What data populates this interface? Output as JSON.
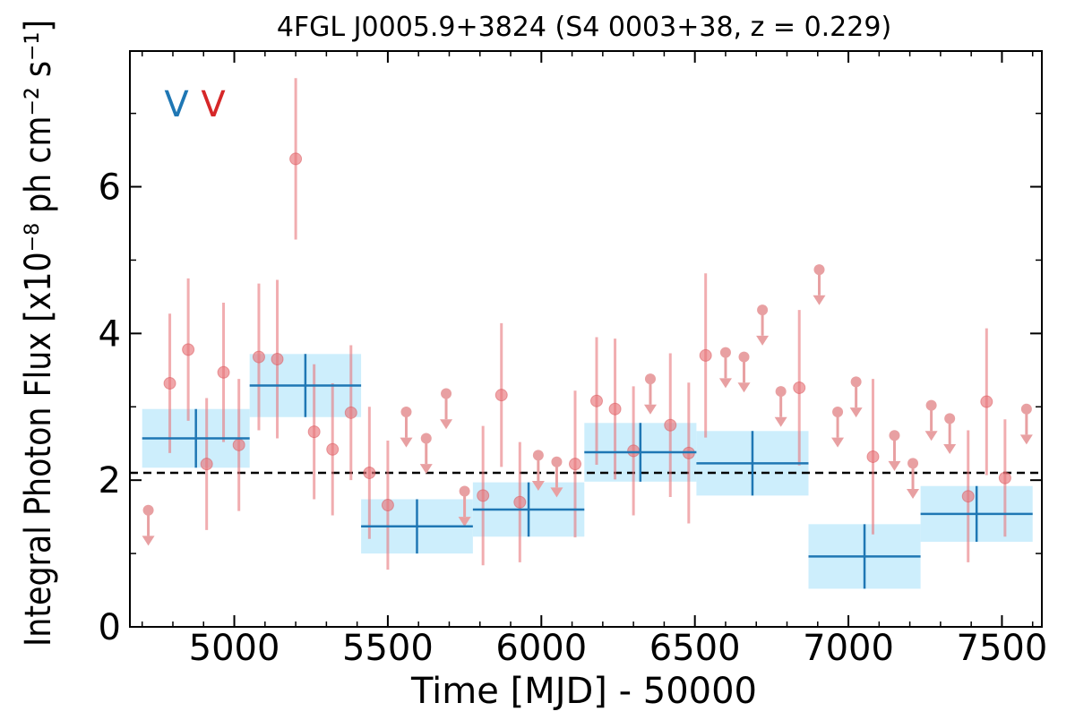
{
  "chart_data": {
    "type": "scatter",
    "title": "4FGL J0005.9+3824 (S4 0003+38, z = 0.229)",
    "xlabel": "Time [MJD] - 50000",
    "ylabel": "Integral Photon Flux [x10⁻⁸ ph cm⁻² s⁻¹]",
    "xlim": [
      4660,
      7630
    ],
    "ylim": [
      0,
      7.85
    ],
    "xticks": [
      5000,
      5500,
      6000,
      6500,
      7000,
      7500
    ],
    "xtick_labels": [
      "5000",
      "5500",
      "6000",
      "6500",
      "7000",
      "7500"
    ],
    "yticks": [
      0,
      2,
      4,
      6
    ],
    "ytick_labels": [
      "0",
      "2",
      "4",
      "6"
    ],
    "grid": false,
    "reference_line": {
      "y": 2.1,
      "style": "dashed",
      "color": "#000000"
    },
    "markers": [
      {
        "text": "V",
        "color": "#1f77b4"
      },
      {
        "text": "V",
        "color": "#d62728"
      }
    ],
    "colors": {
      "short_bin": "#e8777b",
      "long_bin": "#1f77b4",
      "long_bin_band": "#cdeefc",
      "upper_limit": "#e8a0a2"
    },
    "series": [
      {
        "style": "points",
        "detections": [
          {
            "x": 4790,
            "y": 3.32,
            "err": 0.95
          },
          {
            "x": 4850,
            "y": 3.78,
            "err": 0.97
          },
          {
            "x": 4910,
            "y": 2.22,
            "err": 0.9
          },
          {
            "x": 4965,
            "y": 3.47,
            "err": 0.95
          },
          {
            "x": 5015,
            "y": 2.48,
            "err": 0.9
          },
          {
            "x": 5080,
            "y": 3.68,
            "err": 1.0
          },
          {
            "x": 5140,
            "y": 3.65,
            "err": 1.08
          },
          {
            "x": 5200,
            "y": 6.38,
            "err": 1.1
          },
          {
            "x": 5260,
            "y": 2.66,
            "err": 0.92
          },
          {
            "x": 5320,
            "y": 2.42,
            "err": 0.9
          },
          {
            "x": 5380,
            "y": 2.92,
            "err": 0.92
          },
          {
            "x": 5440,
            "y": 2.1,
            "err": 0.9
          },
          {
            "x": 5500,
            "y": 1.66,
            "err": 0.88
          },
          {
            "x": 5810,
            "y": 1.79,
            "err": 0.95
          },
          {
            "x": 5870,
            "y": 3.16,
            "err": 0.98
          },
          {
            "x": 5930,
            "y": 1.7,
            "err": 0.82
          },
          {
            "x": 6110,
            "y": 2.22,
            "err": 1.0
          },
          {
            "x": 6180,
            "y": 3.08,
            "err": 0.87
          },
          {
            "x": 6240,
            "y": 2.97,
            "err": 0.96
          },
          {
            "x": 6300,
            "y": 2.4,
            "err": 0.88
          },
          {
            "x": 6420,
            "y": 2.75,
            "err": 0.98
          },
          {
            "x": 6480,
            "y": 2.37,
            "err": 0.96
          },
          {
            "x": 6535,
            "y": 3.7,
            "err": 1.12
          },
          {
            "x": 6840,
            "y": 3.26,
            "err": 1.06
          },
          {
            "x": 7080,
            "y": 2.32,
            "err": 1.06
          },
          {
            "x": 7390,
            "y": 1.78,
            "err": 0.9
          },
          {
            "x": 7450,
            "y": 3.07,
            "err": 1.0
          },
          {
            "x": 7510,
            "y": 2.03,
            "err": 0.8
          }
        ],
        "upper_limits": [
          {
            "x": 4720,
            "y": 1.59
          },
          {
            "x": 5560,
            "y": 2.93
          },
          {
            "x": 5625,
            "y": 2.57
          },
          {
            "x": 5690,
            "y": 3.18
          },
          {
            "x": 5750,
            "y": 1.85
          },
          {
            "x": 5990,
            "y": 2.34
          },
          {
            "x": 6050,
            "y": 2.25
          },
          {
            "x": 6355,
            "y": 3.38
          },
          {
            "x": 6600,
            "y": 3.74
          },
          {
            "x": 6660,
            "y": 3.68
          },
          {
            "x": 6720,
            "y": 4.32
          },
          {
            "x": 6780,
            "y": 3.21
          },
          {
            "x": 6905,
            "y": 4.87
          },
          {
            "x": 6965,
            "y": 2.93
          },
          {
            "x": 7025,
            "y": 3.34
          },
          {
            "x": 7150,
            "y": 2.61
          },
          {
            "x": 7210,
            "y": 2.23
          },
          {
            "x": 7270,
            "y": 3.02
          },
          {
            "x": 7330,
            "y": 2.84
          },
          {
            "x": 7580,
            "y": 2.97
          }
        ]
      },
      {
        "style": "bins",
        "bins": [
          {
            "x0": 4700,
            "x1": 5050,
            "y": 2.57,
            "err": 0.4
          },
          {
            "x0": 5050,
            "x1": 5413,
            "y": 3.29,
            "err": 0.43
          },
          {
            "x0": 5413,
            "x1": 5777,
            "y": 1.37,
            "err": 0.37
          },
          {
            "x0": 5777,
            "x1": 6140,
            "y": 1.6,
            "err": 0.37
          },
          {
            "x0": 6140,
            "x1": 6505,
            "y": 2.38,
            "err": 0.4
          },
          {
            "x0": 6505,
            "x1": 6870,
            "y": 2.23,
            "err": 0.44
          },
          {
            "x0": 6870,
            "x1": 7235,
            "y": 0.96,
            "err": 0.44
          },
          {
            "x0": 7235,
            "x1": 7600,
            "y": 1.54,
            "err": 0.38
          }
        ]
      }
    ]
  }
}
